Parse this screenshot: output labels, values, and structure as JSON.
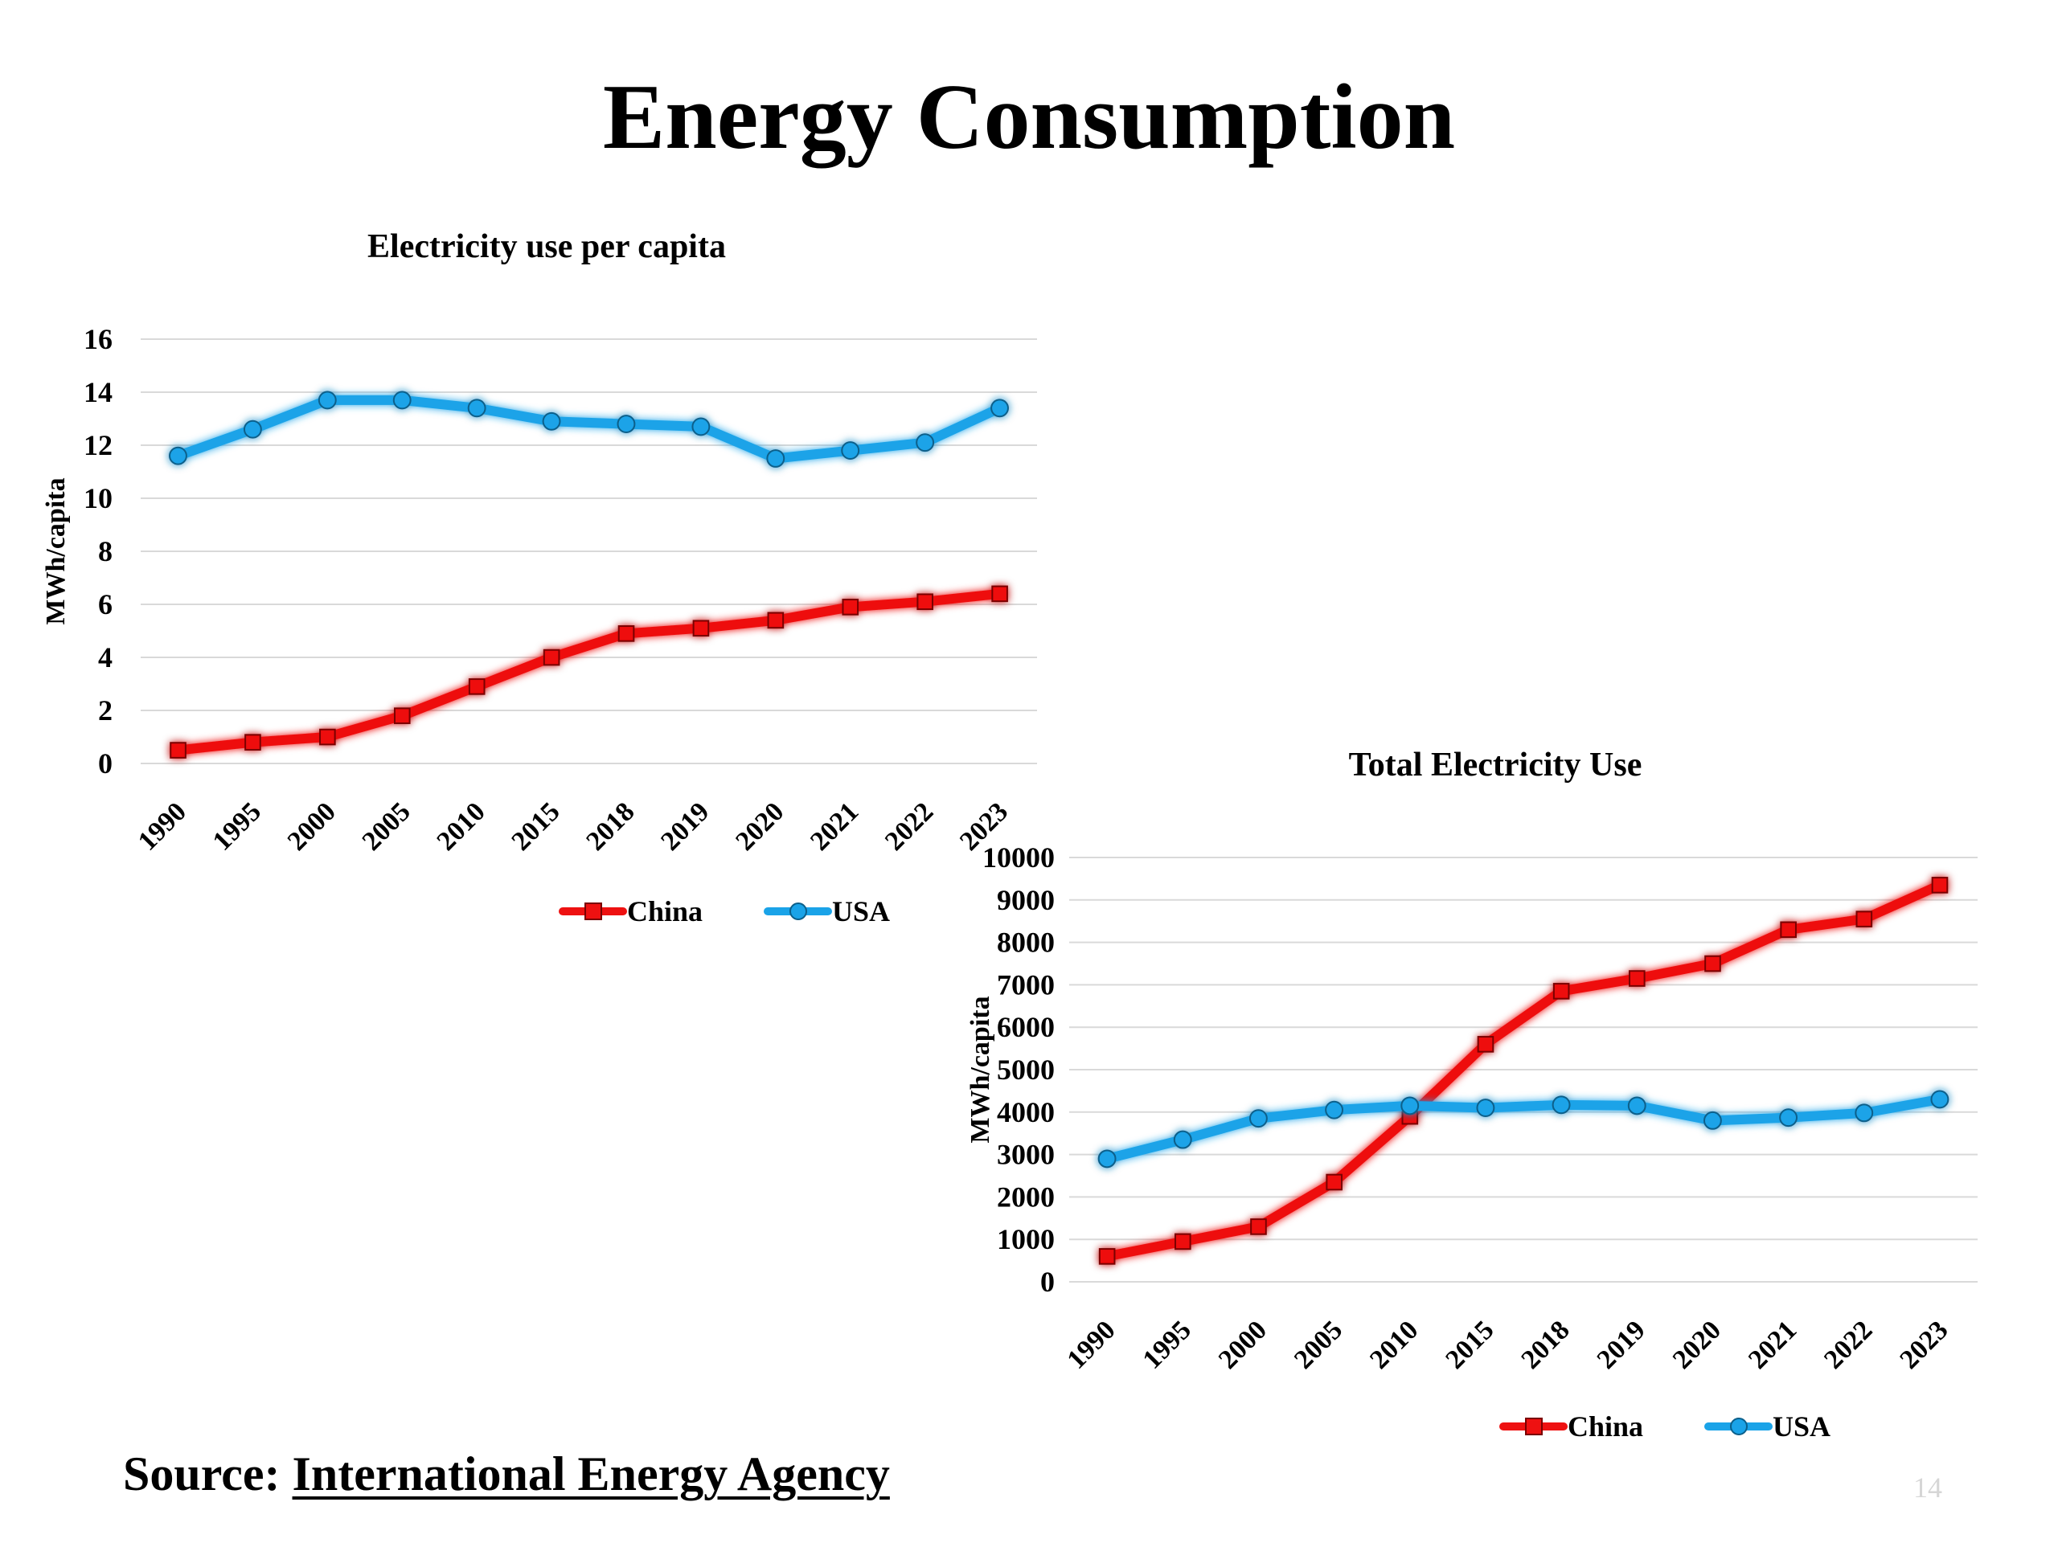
{
  "slide": {
    "title": "Energy Consumption",
    "source_label": "Source:",
    "source_link_text": "International Energy Agency",
    "page_number": "14"
  },
  "colors": {
    "china": "#ee1111",
    "usa": "#1aa3e8",
    "gridline": "#d9d9d9",
    "text": "#000000"
  },
  "chart_data": [
    {
      "id": "per-capita",
      "type": "line",
      "title": "Electricity use per capita",
      "xlabel": "",
      "ylabel": "MWh/capita",
      "categories": [
        "1990",
        "1995",
        "2000",
        "2005",
        "2010",
        "2015",
        "2018",
        "2019",
        "2020",
        "2021",
        "2022",
        "2023"
      ],
      "ylim": [
        0,
        16
      ],
      "yticks": [
        0,
        2,
        4,
        6,
        8,
        10,
        12,
        14,
        16
      ],
      "grid": true,
      "legend_position": "bottom",
      "series": [
        {
          "name": "China",
          "marker": "square",
          "color_key": "china",
          "values": [
            0.5,
            0.8,
            1.0,
            1.8,
            2.9,
            4.0,
            4.9,
            5.1,
            5.4,
            5.9,
            6.1,
            6.4
          ]
        },
        {
          "name": "USA",
          "marker": "circle",
          "color_key": "usa",
          "values": [
            11.6,
            12.6,
            13.7,
            13.7,
            13.4,
            12.9,
            12.8,
            12.7,
            11.5,
            11.8,
            12.1,
            13.4
          ]
        }
      ]
    },
    {
      "id": "total",
      "type": "line",
      "title": "Total Electricity Use",
      "xlabel": "",
      "ylabel": "MWh/capita",
      "categories": [
        "1990",
        "1995",
        "2000",
        "2005",
        "2010",
        "2015",
        "2018",
        "2019",
        "2020",
        "2021",
        "2022",
        "2023"
      ],
      "ylim": [
        0,
        10000
      ],
      "yticks": [
        0,
        1000,
        2000,
        3000,
        4000,
        5000,
        6000,
        7000,
        8000,
        9000,
        10000
      ],
      "grid": true,
      "legend_position": "bottom",
      "series": [
        {
          "name": "China",
          "marker": "square",
          "color_key": "china",
          "values": [
            600,
            950,
            1300,
            2350,
            3900,
            5600,
            6850,
            7150,
            7500,
            8300,
            8550,
            9350
          ]
        },
        {
          "name": "USA",
          "marker": "circle",
          "color_key": "usa",
          "values": [
            2900,
            3350,
            3850,
            4050,
            4150,
            4100,
            4170,
            4150,
            3800,
            3870,
            3980,
            4300
          ]
        }
      ]
    }
  ]
}
